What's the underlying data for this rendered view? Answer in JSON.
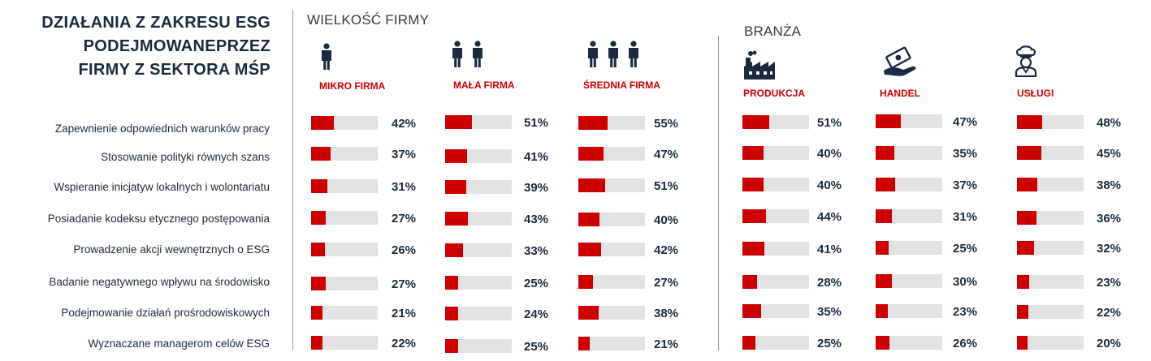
{
  "title_lines": [
    "DZIAŁANIA Z ZAKRESU ESG",
    "PODEJMOWANEPRZEZ",
    "FIRMY Z SEKTORA MŚP"
  ],
  "sections": {
    "size": "WIELKOŚĆ FIRMY",
    "industry": "BRANŻA"
  },
  "chart_data": {
    "type": "bar",
    "title": "DZIAŁANIA Z ZAKRESU ESG PODEJMOWANEPRZEZ FIRMY Z SEKTORA MŚP",
    "unit": "%",
    "xlim": [
      0,
      100
    ],
    "categories": [
      "Zapewnienie odpowiednich warunków pracy",
      "Stosowanie polityki równych szans",
      "Wspieranie inicjatyw lokalnych  i wolontariatu",
      "Posiadanie kodeksu etycznego postępowania",
      "Prowadzenie akcji wewnętrznych o ESG",
      "Badanie negatywnego wpływu na środowisko",
      "Podejmowanie działań prośrodowiskowych",
      "Wyznaczane managerom celów ESG"
    ],
    "series": [
      {
        "name": "MIKRO FIRMA",
        "group": "size",
        "values": [
          42,
          37,
          31,
          27,
          26,
          27,
          21,
          22
        ],
        "labels": [
          "42%",
          "37%",
          "31%",
          "27%",
          "26%",
          "27%",
          "21%",
          "22%"
        ]
      },
      {
        "name": "MAŁA FIRMA",
        "group": "size",
        "values": [
          51,
          41,
          39,
          43,
          33,
          25,
          24,
          25
        ],
        "labels": [
          "51%",
          "41%",
          "39%",
          "43%",
          "33%",
          "25%",
          "24%",
          "25%"
        ]
      },
      {
        "name": "ŚREDNIA FIRMA",
        "group": "size",
        "values": [
          55,
          47,
          51,
          40,
          42,
          27,
          38,
          21
        ],
        "labels": [
          "55%",
          "47%",
          "51%",
          "40%",
          "42%",
          "27%",
          "38%",
          "21%"
        ]
      },
      {
        "name": "PRODUKCJA",
        "group": "industry",
        "values": [
          51,
          40,
          40,
          44,
          41,
          28,
          35,
          25
        ],
        "labels": [
          "51%",
          "40%",
          "40%",
          "44%",
          "41%",
          "28%",
          "35%",
          "25%"
        ]
      },
      {
        "name": "HANDEL",
        "group": "industry",
        "values": [
          47,
          35,
          37,
          31,
          25,
          30,
          23,
          26
        ],
        "labels": [
          "47%",
          "35%",
          "37%",
          "31%",
          "25%",
          "30%",
          "23%",
          "26%"
        ]
      },
      {
        "name": "USŁUGI",
        "group": "industry",
        "values": [
          48,
          45,
          38,
          36,
          32,
          23,
          22,
          20
        ],
        "labels": [
          "48%",
          "45%",
          "38%",
          "36%",
          "32%",
          "23%",
          "22%",
          "20%"
        ]
      }
    ]
  },
  "icons": [
    "person-icon",
    "two-people-icon",
    "three-people-icon",
    "factory-icon",
    "hand-money-icon",
    "chef-icon"
  ],
  "colors": {
    "accent": "#cc0000",
    "track": "#e2e2e2",
    "text": "#1b2a3e"
  }
}
